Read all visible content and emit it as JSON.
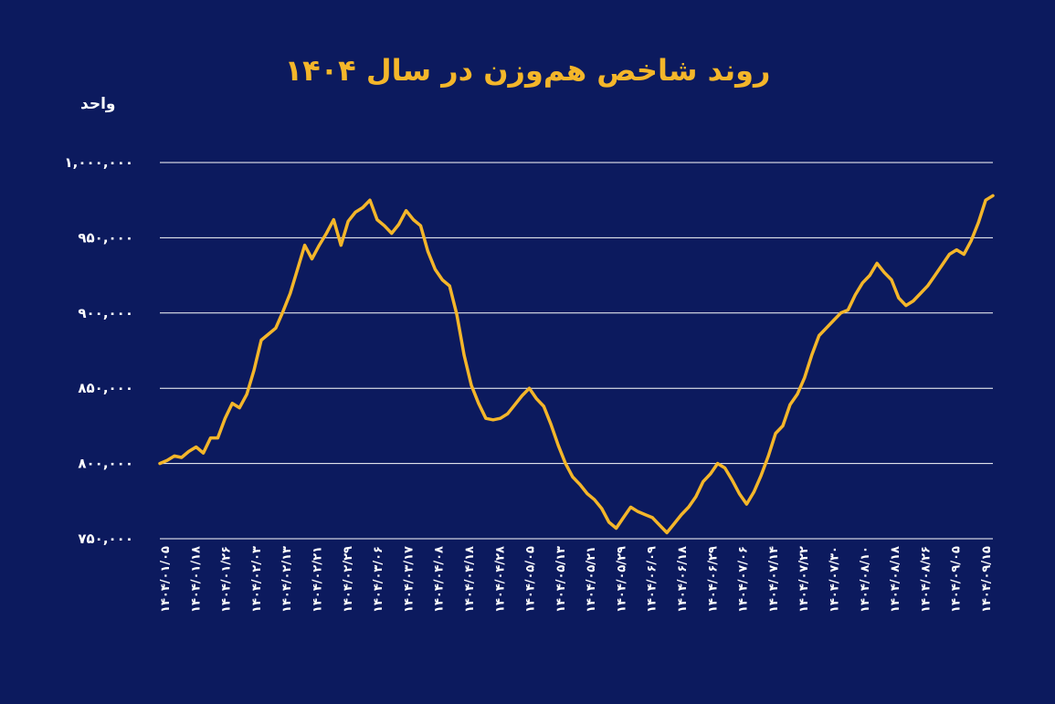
{
  "chart_data": {
    "type": "line",
    "title": "روند شاخص هم‌وزن در سال ۱۴۰۴",
    "ylabel": "واحد",
    "ylim": [
      750000,
      1000000
    ],
    "yticks": [
      1000000,
      950000,
      900000,
      850000,
      800000,
      750000
    ],
    "ytick_labels": [
      "۱,۰۰۰,۰۰۰",
      "۹۵۰,۰۰۰",
      "۹۰۰,۰۰۰",
      "۸۵۰,۰۰۰",
      "۸۰۰,۰۰۰",
      "۷۵۰,۰۰۰"
    ],
    "xtick_labels": [
      "۱۴۰۴/۰۱/۰۵",
      "۱۴۰۴/۰۱/۱۸",
      "۱۴۰۴/۰۱/۲۶",
      "۱۴۰۴/۰۲/۰۳",
      "۱۴۰۴/۰۲/۱۳",
      "۱۴۰۴/۰۲/۲۱",
      "۱۴۰۴/۰۲/۲۹",
      "۱۴۰۴/۰۳/۰۶",
      "۱۴۰۴/۰۳/۱۷",
      "۱۴۰۴/۰۴/۰۸",
      "۱۴۰۴/۰۴/۱۸",
      "۱۴۰۴/۰۴/۲۸",
      "۱۴۰۴/۰۵/۰۵",
      "۱۴۰۴/۰۵/۱۳",
      "۱۴۰۴/۰۵/۲۱",
      "۱۴۰۴/۰۵/۲۹",
      "۱۴۰۴/۰۶/۰۹",
      "۱۴۰۴/۰۶/۱۸",
      "۱۴۰۴/۰۶/۲۹",
      "۱۴۰۴/۰۷/۰۶",
      "۱۴۰۴/۰۷/۱۴",
      "۱۴۰۴/۰۷/۲۲",
      "۱۴۰۴/۰۷/۳۰",
      "۱۴۰۴/۰۸/۱۰",
      "۱۴۰۴/۰۸/۱۸",
      "۱۴۰۴/۰۸/۲۶",
      "۱۴۰۴/۰۹/۰۵",
      "۱۴۰۴/۰۹/۱۵"
    ],
    "grid": true,
    "color": "#f4b62a",
    "values": [
      800000,
      802000,
      805000,
      804000,
      808000,
      811000,
      807000,
      817000,
      817000,
      830000,
      840000,
      837000,
      846000,
      862000,
      882000,
      886000,
      890000,
      901000,
      913000,
      929000,
      945000,
      936000,
      945000,
      953000,
      962000,
      945000,
      961000,
      967000,
      970000,
      975000,
      962000,
      958000,
      953000,
      959000,
      968000,
      962000,
      958000,
      941000,
      929000,
      922000,
      918000,
      899000,
      872000,
      852000,
      840000,
      830000,
      829000,
      830000,
      833000,
      839000,
      845000,
      850000,
      843000,
      838000,
      826000,
      812000,
      800000,
      791000,
      786000,
      780000,
      776000,
      770000,
      761000,
      757000,
      764000,
      771000,
      768000,
      766000,
      764000,
      759000,
      754000,
      760000,
      766000,
      771000,
      778000,
      788000,
      793000,
      800000,
      797000,
      789000,
      780000,
      773000,
      781000,
      792000,
      805000,
      820000,
      825000,
      839000,
      846000,
      857000,
      872000,
      885000,
      890000,
      895000,
      900000,
      902000,
      912000,
      920000,
      925000,
      933000,
      927000,
      922000,
      910000,
      905000,
      908000,
      913000,
      918000,
      925000,
      932000,
      939000,
      942000,
      939000,
      948000,
      960000,
      975000,
      978000
    ]
  }
}
